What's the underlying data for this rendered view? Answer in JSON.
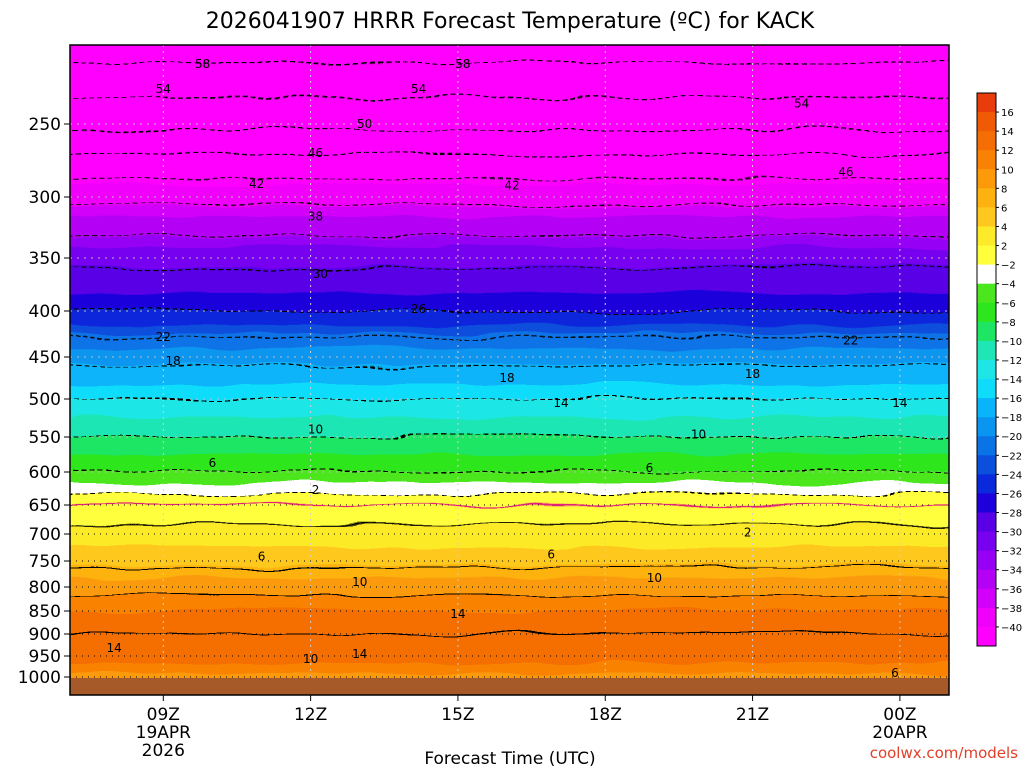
{
  "chart_data": {
    "type": "heatmap",
    "title": "2026041907 HRRR Forecast Temperature (ºC) for KACK",
    "xlabel": "Forecast Time (UTC)",
    "ylabel": "",
    "x_ticks": [
      {
        "hour": 9,
        "lines": [
          "09Z",
          "19APR",
          "2026"
        ]
      },
      {
        "hour": 12,
        "lines": [
          "12Z"
        ]
      },
      {
        "hour": 15,
        "lines": [
          "15Z"
        ]
      },
      {
        "hour": 18,
        "lines": [
          "18Z"
        ]
      },
      {
        "hour": 21,
        "lines": [
          "21Z"
        ]
      },
      {
        "hour": 24,
        "lines": [
          "00Z",
          "20APR"
        ]
      }
    ],
    "xlim": [
      7.1,
      25.0
    ],
    "y_ticks": [
      250,
      300,
      350,
      400,
      450,
      500,
      550,
      600,
      650,
      700,
      750,
      800,
      850,
      900,
      950,
      1000
    ],
    "ylim_hpa": [
      200,
      1020
    ],
    "colorbar": {
      "levels": [
        16,
        14,
        12,
        10,
        8,
        6,
        4,
        2,
        -2,
        -4,
        -6,
        -8,
        -10,
        -12,
        -14,
        -16,
        -18,
        -20,
        -22,
        -24,
        -26,
        -28,
        -30,
        -32,
        -34,
        -36,
        -38,
        -40
      ],
      "colors": [
        "#e83c0a",
        "#f05a05",
        "#f56e05",
        "#f98205",
        "#fc9a0a",
        "#fdb210",
        "#fec81e",
        "#fdea28",
        "#ffff3c",
        "#ffffff",
        "#4be61e",
        "#2ee61e",
        "#1ee664",
        "#1ee6b4",
        "#1ee6e6",
        "#0fdcfa",
        "#0ab4fa",
        "#0a96f0",
        "#0a73e6",
        "#0a50dc",
        "#0a28dc",
        "#1e00dc",
        "#5a00e6",
        "#7800f0",
        "#9600f5",
        "#b400f5",
        "#d200fa",
        "#f000fa",
        "#ff00ff"
      ]
    },
    "temperature_profile": [
      {
        "pressure": 200,
        "temp": -60
      },
      {
        "pressure": 250,
        "temp": -51
      },
      {
        "pressure": 300,
        "temp": -39
      },
      {
        "pressure": 350,
        "temp": -31
      },
      {
        "pressure": 400,
        "temp": -26
      },
      {
        "pressure": 450,
        "temp": -19
      },
      {
        "pressure": 500,
        "temp": -14
      },
      {
        "pressure": 550,
        "temp": -10
      },
      {
        "pressure": 600,
        "temp": -6
      },
      {
        "pressure": 650,
        "temp": 0
      },
      {
        "pressure": 700,
        "temp": 3
      },
      {
        "pressure": 750,
        "temp": 5
      },
      {
        "pressure": 800,
        "temp": 9
      },
      {
        "pressure": 850,
        "temp": 12
      },
      {
        "pressure": 900,
        "temp": 14
      },
      {
        "pressure": 950,
        "temp": 13
      },
      {
        "pressure": 1000,
        "temp": 9
      },
      {
        "pressure": 1020,
        "temp": 8
      }
    ],
    "contour_labels": [
      {
        "text": "58",
        "hour": 9.8,
        "pressure": 212
      },
      {
        "text": "58",
        "hour": 15.1,
        "pressure": 212
      },
      {
        "text": "54",
        "hour": 9.0,
        "pressure": 228
      },
      {
        "text": "54",
        "hour": 14.2,
        "pressure": 228
      },
      {
        "text": "54",
        "hour": 22.0,
        "pressure": 237
      },
      {
        "text": "50",
        "hour": 13.1,
        "pressure": 250
      },
      {
        "text": "46",
        "hour": 12.1,
        "pressure": 270
      },
      {
        "text": "46",
        "hour": 22.9,
        "pressure": 283
      },
      {
        "text": "42",
        "hour": 10.9,
        "pressure": 291
      },
      {
        "text": "42",
        "hour": 16.1,
        "pressure": 292
      },
      {
        "text": "38",
        "hour": 12.1,
        "pressure": 316
      },
      {
        "text": "30",
        "hour": 12.2,
        "pressure": 365
      },
      {
        "text": "26",
        "hour": 14.2,
        "pressure": 398
      },
      {
        "text": "22",
        "hour": 9.0,
        "pressure": 428
      },
      {
        "text": "22",
        "hour": 23.0,
        "pressure": 432
      },
      {
        "text": "18",
        "hour": 9.2,
        "pressure": 455
      },
      {
        "text": "18",
        "hour": 16.0,
        "pressure": 475
      },
      {
        "text": "18",
        "hour": 21.0,
        "pressure": 470
      },
      {
        "text": "14",
        "hour": 17.1,
        "pressure": 505
      },
      {
        "text": "14",
        "hour": 24.0,
        "pressure": 505
      },
      {
        "text": "10",
        "hour": 12.1,
        "pressure": 540
      },
      {
        "text": "10",
        "hour": 19.9,
        "pressure": 547
      },
      {
        "text": "6",
        "hour": 10.0,
        "pressure": 587
      },
      {
        "text": "6",
        "hour": 18.9,
        "pressure": 594
      },
      {
        "text": "2",
        "hour": 12.1,
        "pressure": 627
      },
      {
        "text": "2",
        "hour": 20.9,
        "pressure": 697
      },
      {
        "text": "6",
        "hour": 11.0,
        "pressure": 742
      },
      {
        "text": "6",
        "hour": 16.9,
        "pressure": 738
      },
      {
        "text": "10",
        "hour": 13.0,
        "pressure": 790
      },
      {
        "text": "10",
        "hour": 19.0,
        "pressure": 783
      },
      {
        "text": "14",
        "hour": 15.0,
        "pressure": 857
      },
      {
        "text": "14",
        "hour": 8.0,
        "pressure": 932
      },
      {
        "text": "14",
        "hour": 13.0,
        "pressure": 946
      },
      {
        "text": "10",
        "hour": 12.0,
        "pressure": 957
      },
      {
        "text": "6",
        "hour": 23.9,
        "pressure": 990
      }
    ],
    "credit": "coolwx.com/models"
  }
}
